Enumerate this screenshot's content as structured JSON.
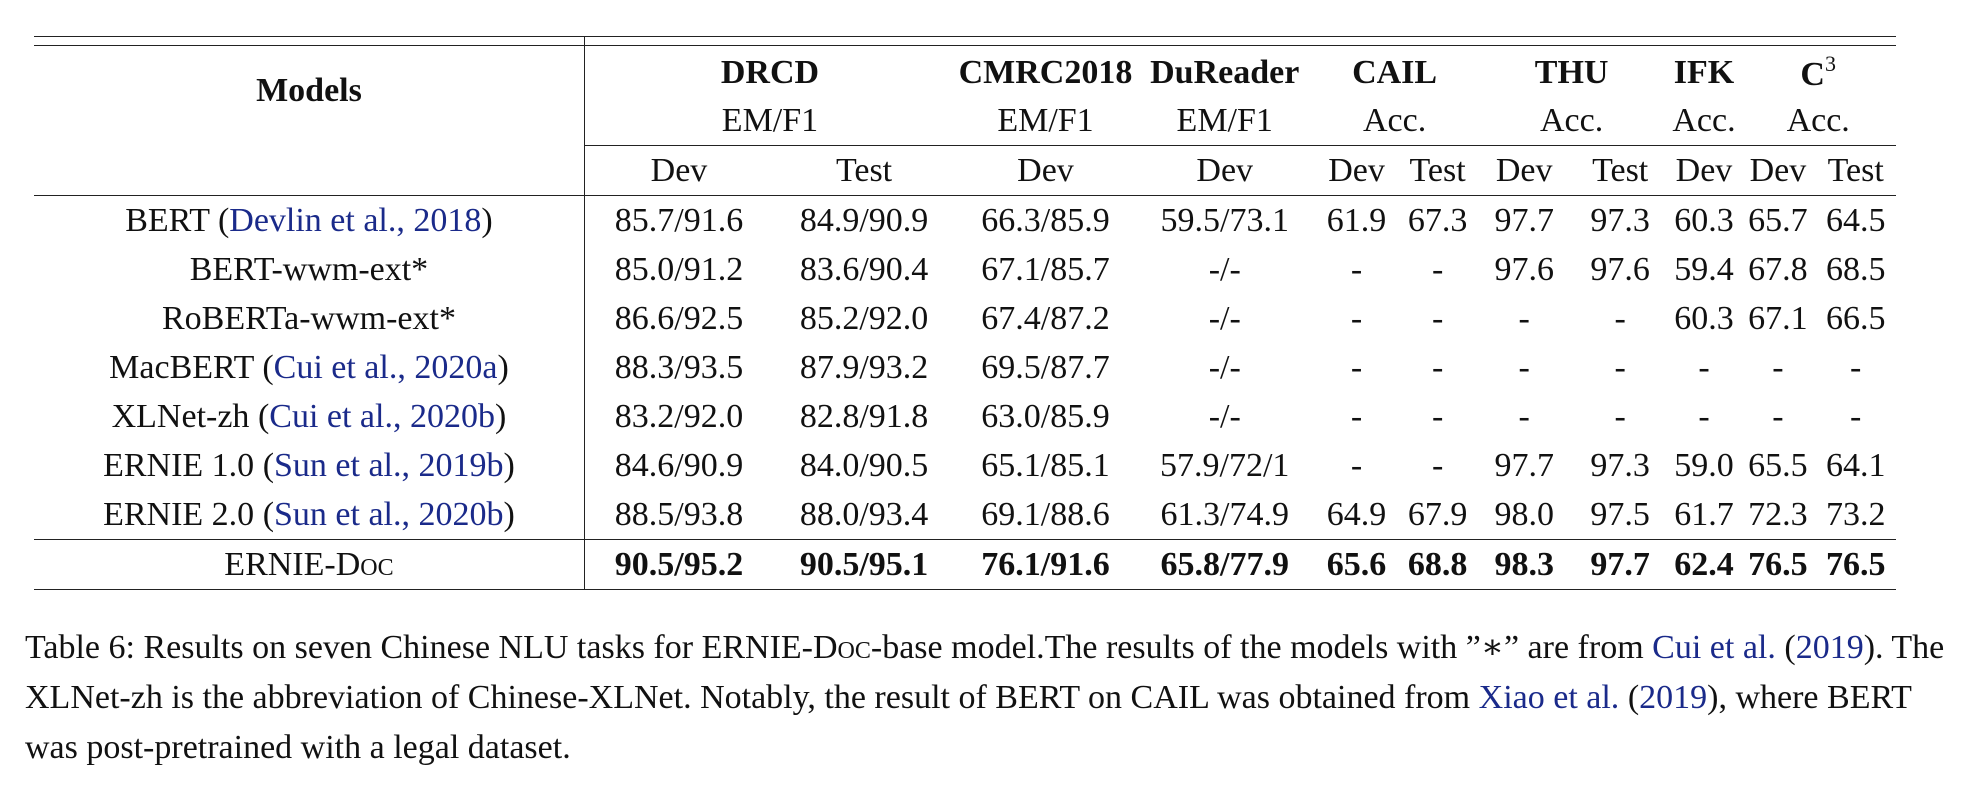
{
  "table": {
    "header": {
      "models_label": "Models",
      "datasets": [
        {
          "name": "DRCD",
          "metric": "EM/F1",
          "splits": [
            "Dev",
            "Test"
          ]
        },
        {
          "name": "CMRC2018",
          "metric": "EM/F1",
          "splits": [
            "Dev"
          ]
        },
        {
          "name": "DuReader",
          "metric": "EM/F1",
          "splits": [
            "Dev"
          ]
        },
        {
          "name": "CAIL",
          "metric": "Acc.",
          "splits": [
            "Dev",
            "Test"
          ]
        },
        {
          "name": "THU",
          "metric": "Acc.",
          "splits": [
            "Dev",
            "Test"
          ]
        },
        {
          "name": "IFK",
          "metric": "Acc.",
          "splits": [
            "Dev"
          ]
        },
        {
          "name": "C",
          "name_sup": "3",
          "metric": "Acc.",
          "splits": [
            "Dev",
            "Test"
          ]
        }
      ]
    },
    "rows": [
      {
        "model": "BERT",
        "cite_open": " (",
        "cite": "Devlin et al., 2018",
        "cite_close": ")",
        "values": [
          "85.7/91.6",
          "84.9/90.9",
          "66.3/85.9",
          "59.5/73.1",
          "61.9",
          "67.3",
          "97.7",
          "97.3",
          "60.3",
          "65.7",
          "64.5"
        ]
      },
      {
        "model": "BERT-wwm-ext*",
        "cite_open": "",
        "cite": "",
        "cite_close": "",
        "values": [
          "85.0/91.2",
          "83.6/90.4",
          "67.1/85.7",
          "-/-",
          "-",
          "-",
          "97.6",
          "97.6",
          "59.4",
          "67.8",
          "68.5"
        ]
      },
      {
        "model": "RoBERTa-wwm-ext*",
        "cite_open": "",
        "cite": "",
        "cite_close": "",
        "values": [
          "86.6/92.5",
          "85.2/92.0",
          "67.4/87.2",
          "-/-",
          "-",
          "-",
          "-",
          "-",
          "60.3",
          "67.1",
          "66.5"
        ]
      },
      {
        "model": "MacBERT",
        "cite_open": " (",
        "cite": "Cui et al., 2020a",
        "cite_close": ")",
        "values": [
          "88.3/93.5",
          "87.9/93.2",
          "69.5/87.7",
          "-/-",
          "-",
          "-",
          "-",
          "-",
          "-",
          "-",
          "-"
        ]
      },
      {
        "model": "XLNet-zh",
        "cite_open": " (",
        "cite": "Cui et al., 2020b",
        "cite_close": ")",
        "values": [
          "83.2/92.0",
          "82.8/91.8",
          "63.0/85.9",
          "-/-",
          "-",
          "-",
          "-",
          "-",
          "-",
          "-",
          "-"
        ]
      },
      {
        "model": "ERNIE 1.0",
        "cite_open": " (",
        "cite": "Sun et al., 2019b",
        "cite_close": ")",
        "values": [
          "84.6/90.9",
          "84.0/90.5",
          "65.1/85.1",
          "57.9/72/1",
          "-",
          "-",
          "97.7",
          "97.3",
          "59.0",
          "65.5",
          "64.1"
        ]
      },
      {
        "model": "ERNIE 2.0",
        "cite_open": " (",
        "cite": "Sun et al., 2020b",
        "cite_close": ")",
        "values": [
          "88.5/93.8",
          "88.0/93.4",
          "69.1/88.6",
          "61.3/74.9",
          "64.9",
          "67.9",
          "98.0",
          "97.5",
          "61.7",
          "72.3",
          "73.2"
        ]
      }
    ],
    "ours": {
      "model_prefix": "ERNIE-",
      "model_sc": "Doc",
      "values": [
        "90.5/95.2",
        "90.5/95.1",
        "76.1/91.6",
        "65.8/77.9",
        "65.6",
        "68.8",
        "98.3",
        "97.7",
        "62.4",
        "76.5",
        "76.5"
      ]
    }
  },
  "caption": {
    "p1": "Table 6: Results on seven Chinese NLU tasks for ERNIE-",
    "p1_sc": "Doc",
    "p2": "-base model.The results of the models with ”∗” are from ",
    "cite1_name": "Cui et al.",
    "cite1_open": " (",
    "cite1_year": "2019",
    "cite1_close": ").",
    "p3": " The XLNet-zh is the abbreviation of Chinese-XLNet. Notably, the result of BERT on CAIL was obtained from ",
    "cite2_name": "Xiao et al.",
    "cite2_open": " (",
    "cite2_year": "2019",
    "cite2_close": "),",
    "p4": " where BERT was post-pretrained with a legal dataset."
  }
}
